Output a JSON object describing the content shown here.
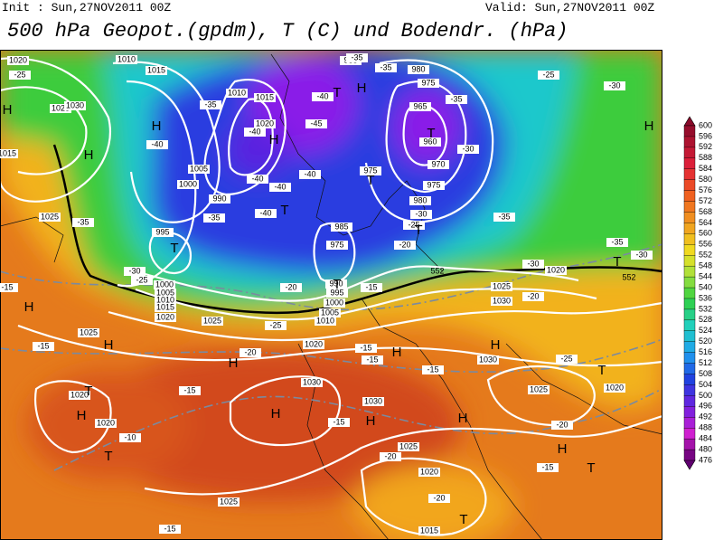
{
  "header": {
    "init": "Init : Sun,27NOV2011 00Z",
    "valid": "Valid: Sun,27NOV2011 00Z",
    "title": "500 hPa Geopot.(gpdm), T (C) und Bodendr. (hPa)"
  },
  "colorbar": {
    "levels": [
      "600",
      "596",
      "592",
      "588",
      "584",
      "580",
      "576",
      "572",
      "568",
      "564",
      "560",
      "556",
      "552",
      "548",
      "544",
      "540",
      "536",
      "532",
      "528",
      "524",
      "520",
      "516",
      "512",
      "508",
      "504",
      "500",
      "496",
      "492",
      "488",
      "484",
      "480",
      "476"
    ]
  },
  "map": {
    "centers": [
      "H",
      "H",
      "H",
      "H",
      "T",
      "T",
      "T",
      "T",
      "T",
      "T",
      "T",
      "H",
      "H",
      "H",
      "H",
      "H",
      "H",
      "H",
      "H",
      "H",
      "H",
      "T",
      "T",
      "T",
      "T",
      "T",
      "H",
      "H",
      "T"
    ],
    "isobars": [
      "1020",
      "1010",
      "1015",
      "1025",
      "1030",
      "1010",
      "1015",
      "1020",
      "1005",
      "1000",
      "990",
      "985",
      "980",
      "975",
      "965",
      "960",
      "970",
      "975",
      "975",
      "980",
      "985",
      "975",
      "995",
      "1025",
      "1030",
      "1025",
      "1020",
      "1000",
      "1005",
      "1010",
      "1015",
      "1020",
      "1025",
      "1025",
      "1020",
      "1010",
      "1005",
      "1000",
      "995",
      "990",
      "1030",
      "1030",
      "1030",
      "1025",
      "1020",
      "1020",
      "1020",
      "1025",
      "1020",
      "1015",
      "1025",
      "1015"
    ],
    "temperatures": [
      "-25",
      "-35",
      "-40",
      "-45",
      "-40",
      "-35",
      "-35",
      "-35",
      "-30",
      "-25",
      "-30",
      "-40",
      "-40",
      "-40",
      "-40",
      "-40",
      "-35",
      "-35",
      "-30",
      "-25",
      "-20",
      "-15",
      "-30",
      "-35",
      "-30",
      "-25",
      "-20",
      "-15",
      "-15",
      "-20",
      "-15",
      "-15",
      "-15",
      "-20",
      "-25",
      "-15",
      "-15",
      "-20",
      "-15",
      "-20",
      "-20",
      "-10",
      "-15",
      "-30",
      "-35",
      "-25"
    ],
    "heights": [
      "552",
      "552"
    ]
  }
}
